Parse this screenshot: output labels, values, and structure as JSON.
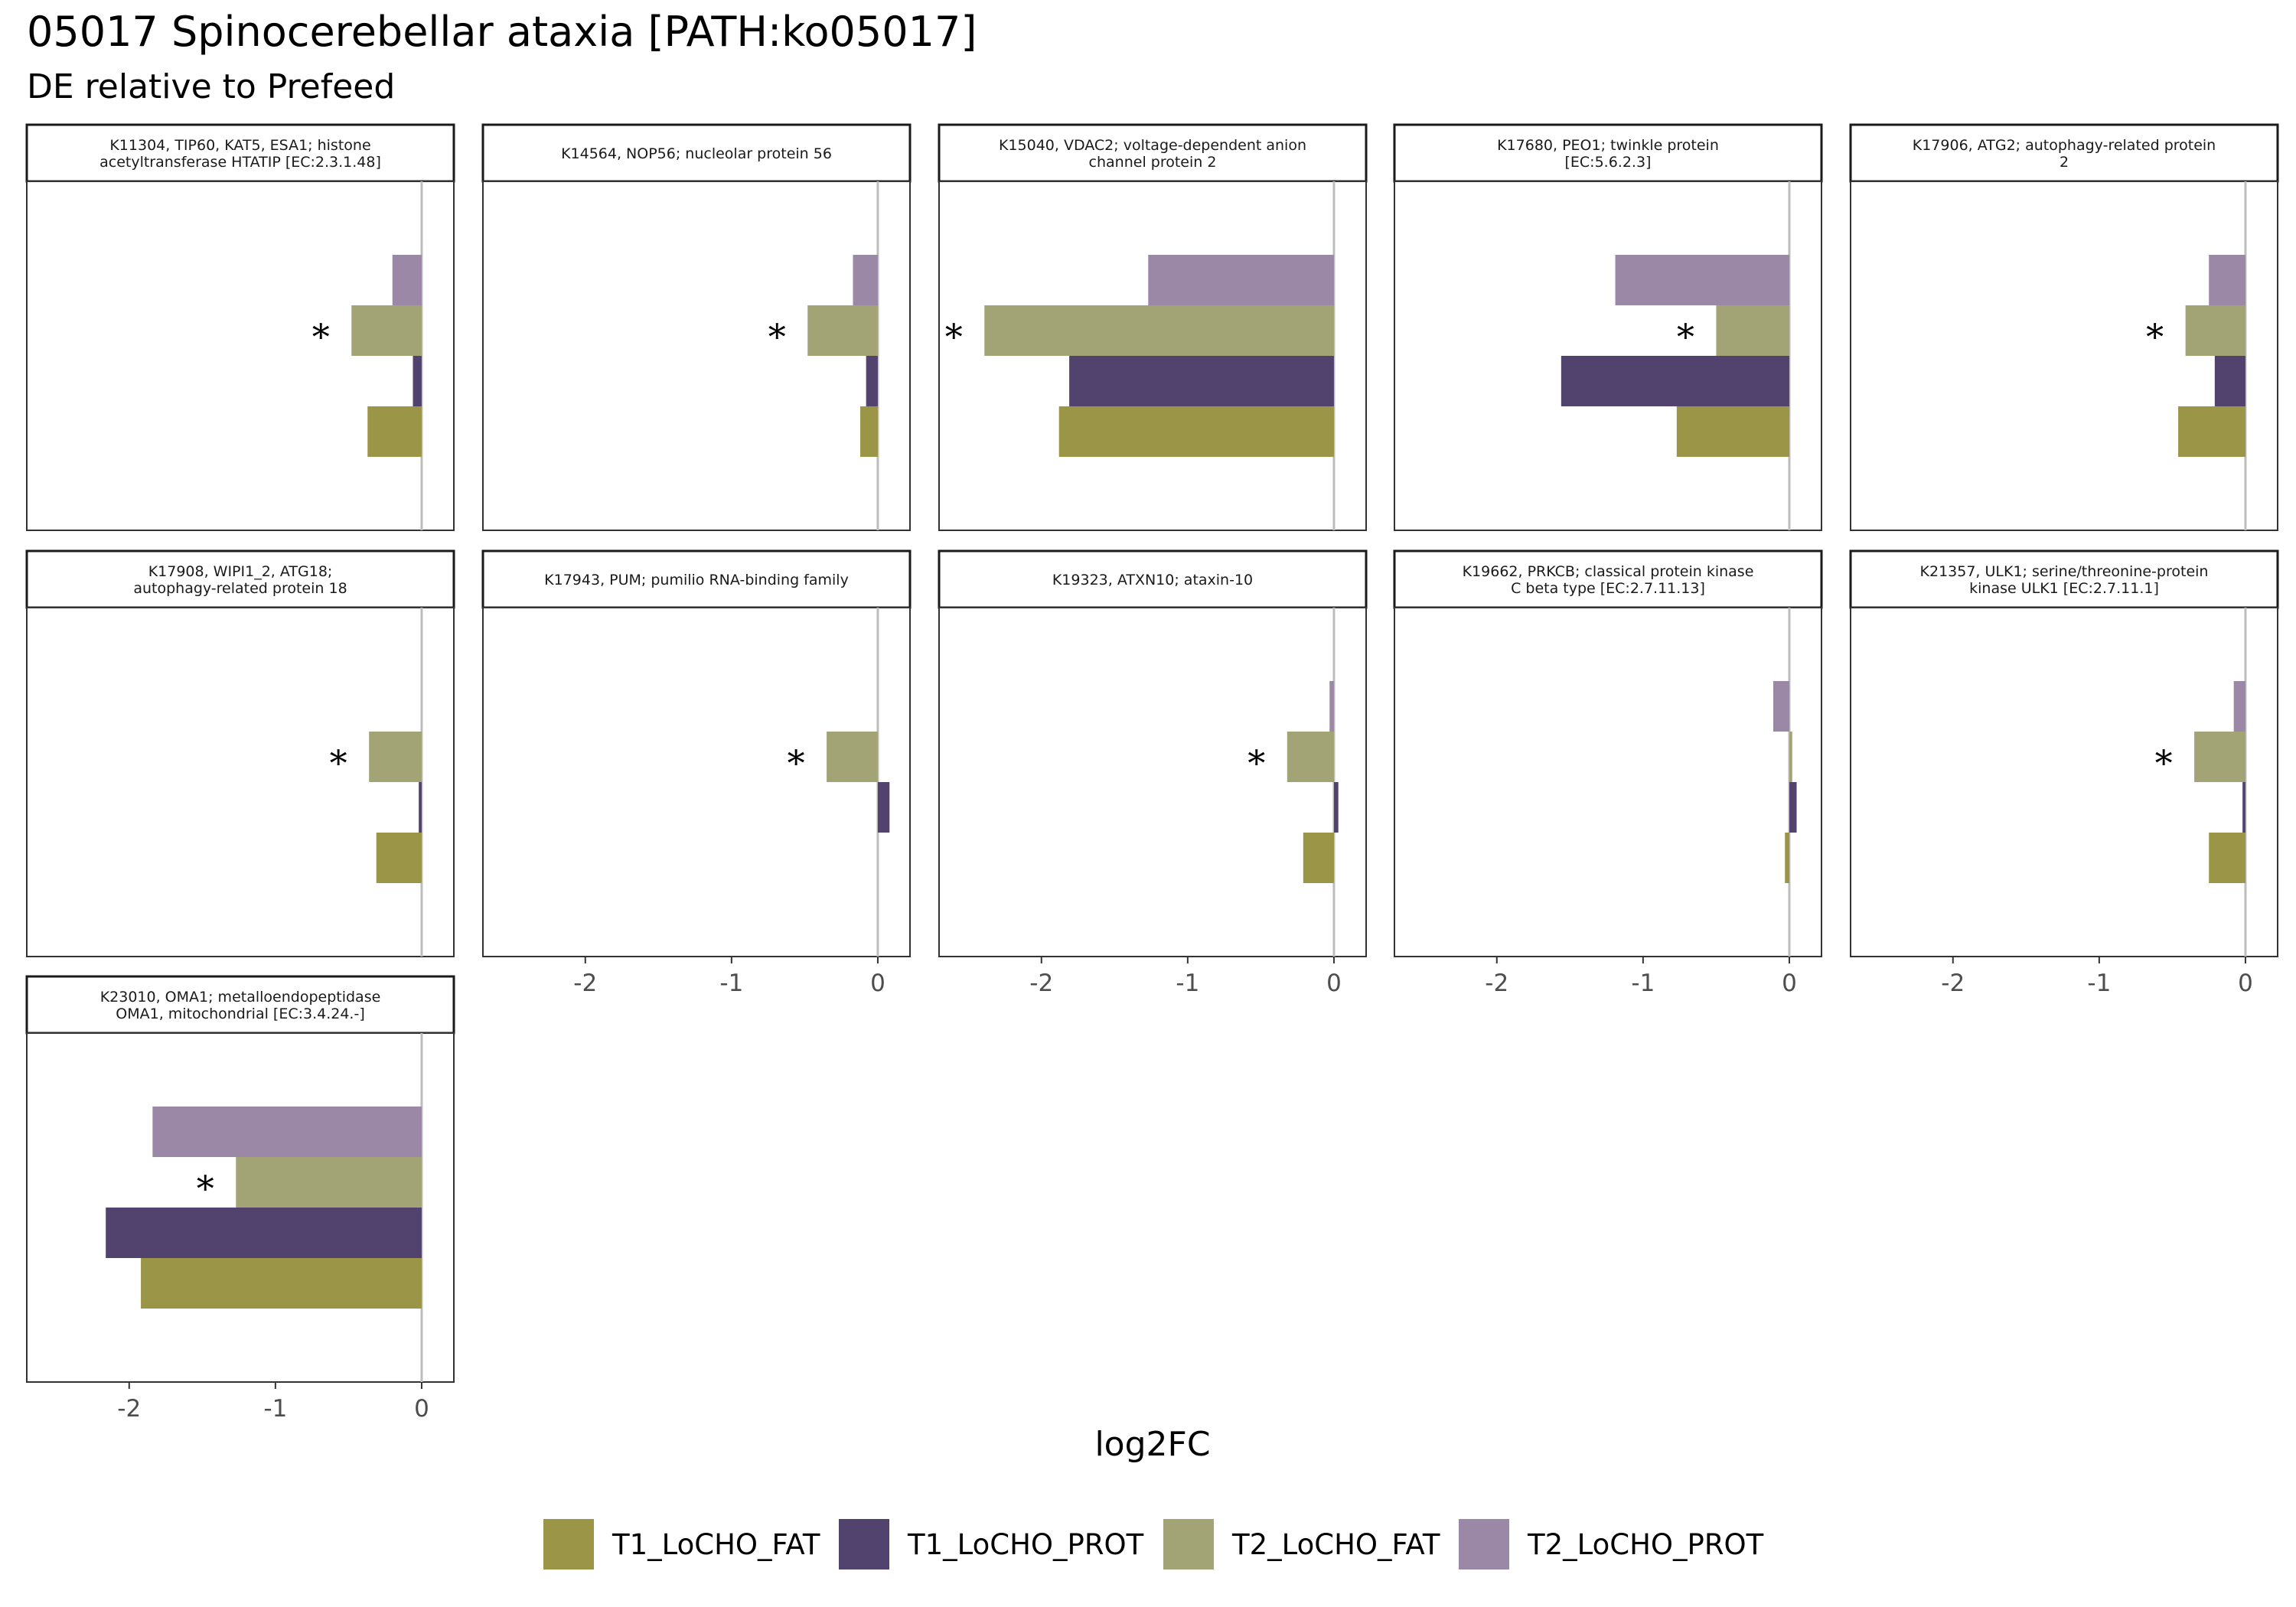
{
  "title": "05017 Spinocerebellar ataxia [PATH:ko05017]",
  "subtitle": "DE relative to Prefeed",
  "chart_data": {
    "type": "bar",
    "orientation": "horizontal",
    "facet_layout": {
      "ncol": 5,
      "nrow": 3
    },
    "xlabel": "log2FC",
    "xlim": [
      -2.7,
      0.22
    ],
    "xticks": [
      -2,
      -1,
      0
    ],
    "xtick_labels": [
      "-2",
      "-1",
      "0"
    ],
    "reference_line": 0,
    "significance_marker": "*",
    "legend": {
      "position": "bottom"
    },
    "series": [
      {
        "name": "T1_LoCHO_FAT",
        "color": "#9b9548"
      },
      {
        "name": "T1_LoCHO_PROT",
        "color": "#52436e"
      },
      {
        "name": "T2_LoCHO_FAT",
        "color": "#a2a476"
      },
      {
        "name": "T2_LoCHO_PROT",
        "color": "#9b88a6"
      }
    ],
    "facets": [
      {
        "label": [
          "K11304, TIP60, KAT5, ESA1; histone",
          "acetyltransferase HTATIP [EC:2.3.1.48]"
        ],
        "values": [
          -0.37,
          -0.06,
          -0.48,
          -0.2
        ],
        "significant": [
          false,
          false,
          true,
          false
        ]
      },
      {
        "label": [
          "K14564, NOP56; nucleolar protein 56"
        ],
        "values": [
          -0.12,
          -0.08,
          -0.48,
          -0.17
        ],
        "significant": [
          false,
          false,
          true,
          false
        ]
      },
      {
        "label": [
          "K15040, VDAC2; voltage-dependent anion",
          "channel protein 2"
        ],
        "values": [
          -1.88,
          -1.81,
          -2.39,
          -1.27
        ],
        "significant": [
          false,
          false,
          true,
          false
        ]
      },
      {
        "label": [
          "K17680, PEO1; twinkle protein",
          "[EC:5.6.2.3]"
        ],
        "values": [
          -0.77,
          -1.56,
          -0.5,
          -1.19
        ],
        "significant": [
          false,
          false,
          true,
          false
        ]
      },
      {
        "label": [
          "K17906, ATG2; autophagy-related protein",
          "2"
        ],
        "values": [
          -0.46,
          -0.21,
          -0.41,
          -0.25
        ],
        "significant": [
          false,
          false,
          true,
          false
        ]
      },
      {
        "label": [
          "K17908, WIPI1_2, ATG18;",
          "autophagy-related protein 18"
        ],
        "values": [
          -0.31,
          -0.02,
          -0.36,
          0.0
        ],
        "significant": [
          false,
          false,
          true,
          false
        ]
      },
      {
        "label": [
          "K17943, PUM; pumilio RNA-binding family"
        ],
        "values": [
          0.0,
          0.08,
          -0.35,
          0.0
        ],
        "significant": [
          false,
          false,
          true,
          false
        ]
      },
      {
        "label": [
          "K19323, ATXN10; ataxin-10"
        ],
        "values": [
          -0.21,
          0.03,
          -0.32,
          -0.03
        ],
        "significant": [
          false,
          false,
          true,
          false
        ]
      },
      {
        "label": [
          "K19662, PRKCB; classical protein kinase",
          "C beta type [EC:2.7.11.13]"
        ],
        "values": [
          -0.03,
          0.05,
          0.02,
          -0.11
        ],
        "significant": [
          false,
          false,
          false,
          false
        ]
      },
      {
        "label": [
          "K21357, ULK1; serine/threonine-protein",
          "kinase ULK1 [EC:2.7.11.1]"
        ],
        "values": [
          -0.25,
          -0.02,
          -0.35,
          -0.08
        ],
        "significant": [
          false,
          false,
          true,
          false
        ]
      },
      {
        "label": [
          "K23010, OMA1; metalloendopeptidase",
          "OMA1, mitochondrial [EC:3.4.24.-]"
        ],
        "values": [
          -1.92,
          -2.16,
          -1.27,
          -1.84
        ],
        "significant": [
          false,
          false,
          true,
          false
        ]
      }
    ]
  }
}
